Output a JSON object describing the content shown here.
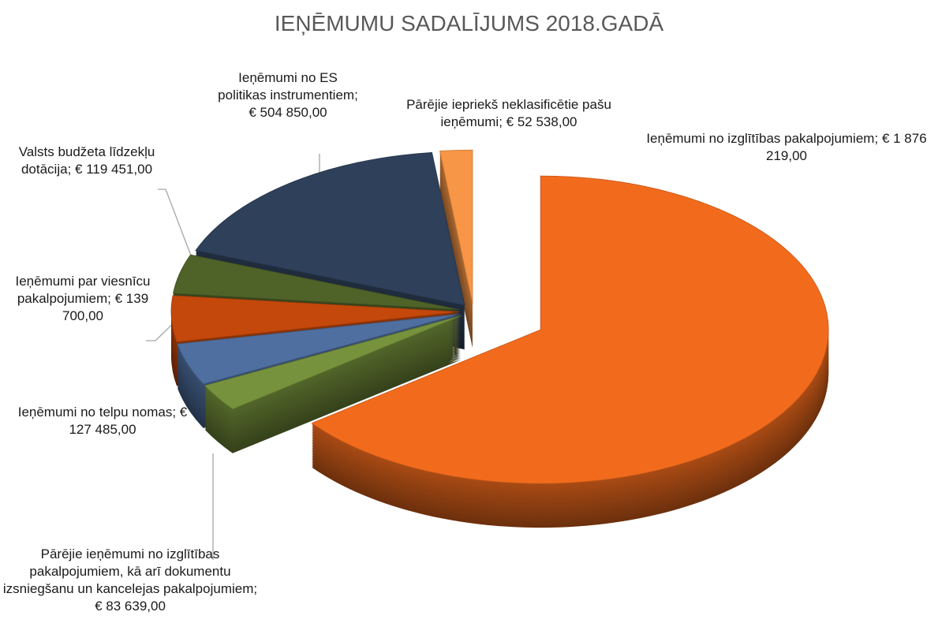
{
  "chart_data": {
    "type": "pie",
    "title": "IEŅĒMUMU SADALĪJUMS 2018.GADĀ",
    "separator": ";",
    "categories": [
      "Ieņēmumi no izglītības pakalpojumiem",
      "Pārējie ieņēmumi no izglītības pakalpojumiem, kā arī dokumentu izsniegšanu un kancelejas pakalpojumiem",
      "Ieņēmumi no telpu nomas",
      "Ieņēmumi par viesnīcu pakalpojumiem",
      "Valsts budžeta līdzekļu dotācija",
      "Ieņēmumi no ES politikas instrumentiem",
      "Pārējie iepriekš neklasificētie pašu ieņēmumi"
    ],
    "values": [
      1876219,
      83639,
      127485,
      139700,
      119451,
      504850,
      52538
    ],
    "value_labels": [
      "€ 1 876 219,00",
      "€ 83 639,00",
      "€ 127 485,00",
      "€ 139 700,00",
      "€ 119 451,00",
      "€ 504 850,00",
      "€ 52 538,00"
    ],
    "colors": [
      "#f26b1d",
      "#76923c",
      "#4f6fa0",
      "#c4480b",
      "#4f6228",
      "#2e405a",
      "#f79646"
    ]
  }
}
